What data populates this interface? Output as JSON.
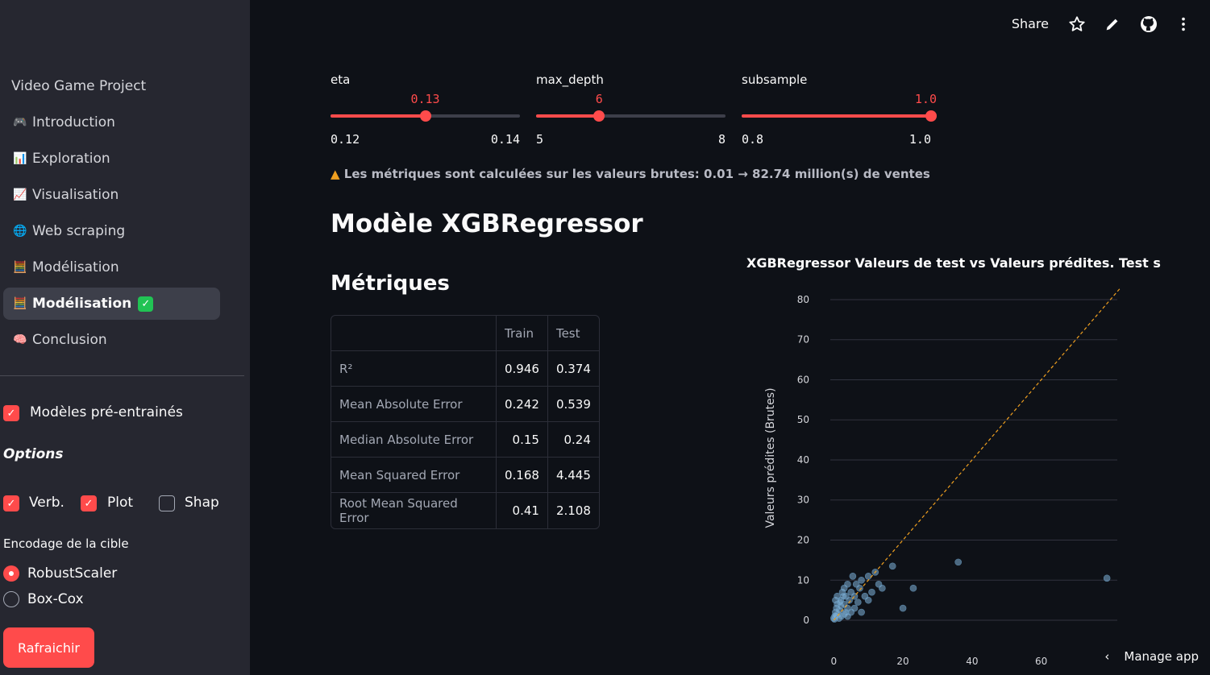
{
  "sidebar": {
    "title": "Video Game Project",
    "nav": [
      {
        "emoji": "🎮",
        "label": "Introduction"
      },
      {
        "emoji": "📊",
        "label": "Exploration"
      },
      {
        "emoji": "📈",
        "label": "Visualisation"
      },
      {
        "emoji": "🌐",
        "label": "Web scraping"
      },
      {
        "emoji": "🧮",
        "label": "Modélisation"
      },
      {
        "emoji": "🧮",
        "label": "Modélisation",
        "active": true,
        "badge": "✓"
      },
      {
        "emoji": "🧠",
        "label": "Conclusion"
      }
    ],
    "pretrained_label": "Modèles pré-entrainés",
    "options_title": "Options",
    "opt_verb": "Verb.",
    "opt_plot": "Plot",
    "opt_shap": "Shap",
    "encoding_label": "Encodage de la cible",
    "radio_robust": "RobustScaler",
    "radio_boxcox": "Box-Cox",
    "refresh_label": "Rafraichir"
  },
  "topbar": {
    "share": "Share"
  },
  "sliders": [
    {
      "label": "eta",
      "value": "0.13",
      "min": "0.12",
      "max": "0.14",
      "fraction": 0.5
    },
    {
      "label": "max_depth",
      "value": "6",
      "min": "5",
      "max": "8",
      "fraction": 0.333
    },
    {
      "label": "subsample",
      "value": "1.0",
      "min": "0.8",
      "max": "1.0",
      "fraction": 1.0
    }
  ],
  "warning": "Les métriques sont calculées sur les valeurs brutes: 0.01 → 82.74 million(s) de ventes",
  "model_title": "Modèle XGBRegressor",
  "metrics_title": "Métriques",
  "metrics_table": {
    "headers": [
      "Train",
      "Test"
    ],
    "rows": [
      {
        "label": "R²",
        "train": "0.946",
        "test": "0.374"
      },
      {
        "label": "Mean Absolute Error",
        "train": "0.242",
        "test": "0.539"
      },
      {
        "label": "Median Absolute Error",
        "train": "0.15",
        "test": "0.24"
      },
      {
        "label": "Mean Squared Error",
        "train": "0.168",
        "test": "4.445"
      },
      {
        "label": "Root Mean Squared Error",
        "train": "0.41",
        "test": "2.108"
      }
    ]
  },
  "chart_data": {
    "type": "scatter",
    "title": "XGBRegressor Valeurs de test vs Valeurs prédites. Test s",
    "ylabel": "Valeurs prédites (Brutes)",
    "xlabel": "",
    "xlim": [
      -1,
      82
    ],
    "ylim": [
      -1,
      82
    ],
    "xticks": [
      0,
      20,
      40,
      60
    ],
    "yticks": [
      0,
      10,
      20,
      30,
      40,
      50,
      60,
      70,
      80
    ],
    "grid": true,
    "diagonal": {
      "from": [
        0,
        0
      ],
      "to": [
        83,
        83
      ],
      "color": "#f0a020"
    },
    "points": [
      [
        0,
        0.5
      ],
      [
        0.3,
        1
      ],
      [
        0.5,
        2
      ],
      [
        0.8,
        3
      ],
      [
        1,
        4
      ],
      [
        1.2,
        1.5
      ],
      [
        1.5,
        2.5
      ],
      [
        2,
        3.5
      ],
      [
        0.5,
        5
      ],
      [
        1,
        6
      ],
      [
        2,
        5
      ],
      [
        2.5,
        7
      ],
      [
        3,
        4
      ],
      [
        3,
        8
      ],
      [
        3.5,
        6
      ],
      [
        4,
        3
      ],
      [
        4,
        9
      ],
      [
        4.5,
        5
      ],
      [
        5,
        7
      ],
      [
        5,
        2
      ],
      [
        5.5,
        11
      ],
      [
        6,
        6
      ],
      [
        6,
        3
      ],
      [
        6.5,
        9
      ],
      [
        7,
        4.5
      ],
      [
        7.5,
        8
      ],
      [
        8,
        10
      ],
      [
        8,
        2
      ],
      [
        9,
        6
      ],
      [
        10,
        11
      ],
      [
        10,
        5
      ],
      [
        11,
        7
      ],
      [
        12,
        12
      ],
      [
        13,
        9
      ],
      [
        14,
        8
      ],
      [
        17,
        13.5
      ],
      [
        20,
        3
      ],
      [
        23,
        8
      ],
      [
        36,
        14.5
      ],
      [
        79,
        10.5
      ],
      [
        0.2,
        0.3
      ],
      [
        0.4,
        0.8
      ],
      [
        0.6,
        1.2
      ],
      [
        1.5,
        0.5
      ],
      [
        2.2,
        1
      ],
      [
        3,
        1.5
      ],
      [
        3.5,
        2
      ],
      [
        4,
        1
      ],
      [
        1.8,
        4.5
      ],
      [
        2.8,
        6
      ]
    ],
    "point_color": "#7fb2d9"
  },
  "manage_app": "Manage app"
}
